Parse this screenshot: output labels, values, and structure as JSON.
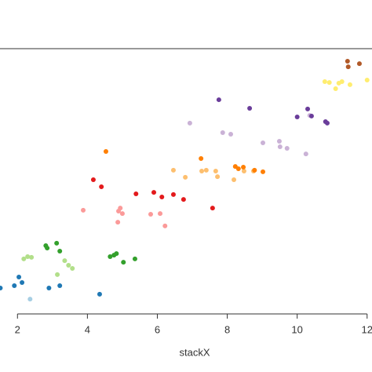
{
  "chart_data": {
    "type": "scatter",
    "x_label": "stackX",
    "xlim": [
      1.5,
      12.14
    ],
    "ylim": [
      0,
      12
    ],
    "xticks": [
      2,
      4,
      6,
      8,
      10,
      12
    ],
    "grid": false,
    "series": [
      {
        "color": "#1f78b4",
        "x": [
          1.51,
          1.91,
          2.04,
          2.13,
          2.9,
          3.21,
          4.35
        ],
        "values": [
          1.17,
          1.28,
          1.67,
          1.42,
          1.17,
          1.28,
          0.89
        ]
      },
      {
        "color": "#a6cee3",
        "x": [
          2.36
        ],
        "values": [
          0.67
        ]
      },
      {
        "color": "#b2df8a",
        "x": [
          2.18,
          2.29,
          2.4,
          3.14,
          3.35,
          3.46,
          3.57
        ],
        "values": [
          2.49,
          2.59,
          2.56,
          1.78,
          2.41,
          2.2,
          2.06
        ]
      },
      {
        "color": "#33a02c",
        "x": [
          2.81,
          2.85,
          3.12,
          3.21,
          4.65,
          4.76,
          4.83,
          5.03,
          5.36
        ],
        "values": [
          3.09,
          2.98,
          3.2,
          2.84,
          2.59,
          2.66,
          2.73,
          2.34,
          2.49
        ]
      },
      {
        "color": "#fb9a99",
        "x": [
          3.88,
          4.89,
          4.94,
          5.0,
          4.87,
          5.81,
          6.22,
          6.08
        ],
        "values": [
          4.69,
          4.65,
          4.79,
          4.54,
          4.15,
          4.51,
          3.98,
          4.54
        ]
      },
      {
        "color": "#e31a1c",
        "x": [
          4.17,
          4.4,
          5.39,
          5.9,
          6.13,
          6.46,
          6.75,
          7.58
        ],
        "values": [
          6.07,
          5.75,
          5.43,
          5.5,
          5.29,
          5.4,
          5.18,
          4.79
        ]
      },
      {
        "color": "#fdbf6f",
        "x": [
          6.46,
          6.8,
          7.27,
          7.4,
          7.67,
          7.72,
          8.19,
          8.48,
          8.75
        ],
        "values": [
          6.5,
          6.18,
          6.46,
          6.5,
          6.46,
          6.21,
          6.07,
          6.46,
          6.46
        ]
      },
      {
        "color": "#ff7f00",
        "x": [
          4.53,
          7.25,
          8.23,
          8.32,
          8.46,
          8.78,
          9.02
        ],
        "values": [
          7.35,
          7.03,
          6.67,
          6.57,
          6.64,
          6.5,
          6.43
        ]
      },
      {
        "color": "#cab2d6",
        "x": [
          6.93,
          7.87,
          8.1,
          9.02,
          9.49,
          9.51,
          9.71,
          10.25,
          10.36
        ],
        "values": [
          8.63,
          8.2,
          8.13,
          7.74,
          7.81,
          7.56,
          7.49,
          7.24,
          8.98
        ]
      },
      {
        "color": "#6a3d9a",
        "x": [
          7.76,
          8.64,
          10.0,
          10.3,
          10.41,
          10.81,
          10.86
        ],
        "values": [
          9.69,
          9.3,
          8.91,
          9.27,
          8.95,
          8.7,
          8.63
        ]
      },
      {
        "color": "#ffed6f",
        "x": [
          10.79,
          10.92,
          11.1,
          11.19,
          11.28,
          11.51,
          12.0
        ],
        "values": [
          10.51,
          10.47,
          10.19,
          10.44,
          10.51,
          10.37,
          10.58
        ]
      },
      {
        "color": "#b15928",
        "x": [
          11.44,
          11.46,
          11.78
        ],
        "values": [
          11.43,
          11.18,
          11.32
        ]
      }
    ]
  }
}
